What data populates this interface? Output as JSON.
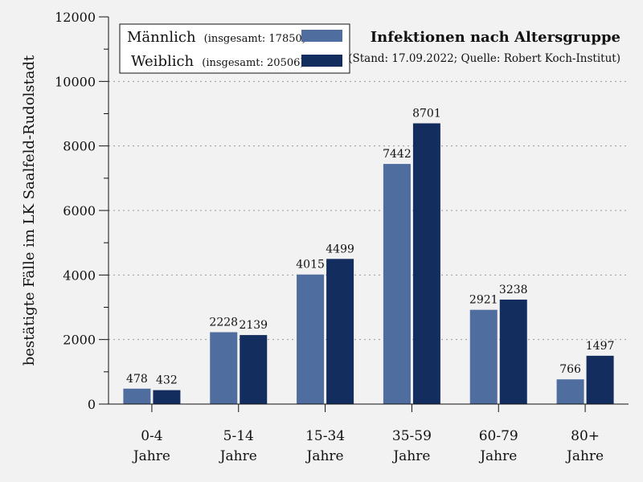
{
  "chart_data": {
    "type": "bar",
    "title": "Infektionen nach Altersgruppe",
    "subtitle": "(Stand: 17.09.2022; Quelle: Robert Koch-Institut)",
    "ylabel": "bestätigte Fälle im LK Saalfeld-Rudolstadt",
    "xlabel": "",
    "ylim": [
      0,
      12000
    ],
    "yticks": [
      0,
      2000,
      4000,
      6000,
      8000,
      10000,
      12000
    ],
    "ytick_labels": [
      "0",
      "2000",
      "4000",
      "6000",
      "8000",
      "10000",
      "12000"
    ],
    "categories": [
      [
        "0-4",
        "Jahre"
      ],
      [
        "5-14",
        "Jahre"
      ],
      [
        "15-34",
        "Jahre"
      ],
      [
        "35-59",
        "Jahre"
      ],
      [
        "60-79",
        "Jahre"
      ],
      [
        "80+",
        "Jahre"
      ]
    ],
    "series": [
      {
        "name": "Männlich",
        "total_label": "(insgesamt: 17850)",
        "color": "#4f6d9e",
        "values": [
          478,
          2228,
          4015,
          7442,
          2921,
          766
        ]
      },
      {
        "name": "Weiblich",
        "total_label": "(insgesamt: 20506)",
        "color": "#132e5e",
        "values": [
          432,
          2139,
          4499,
          8701,
          3238,
          1497
        ]
      }
    ],
    "grid": "horizontal dotted",
    "legend_position": "top-left"
  }
}
